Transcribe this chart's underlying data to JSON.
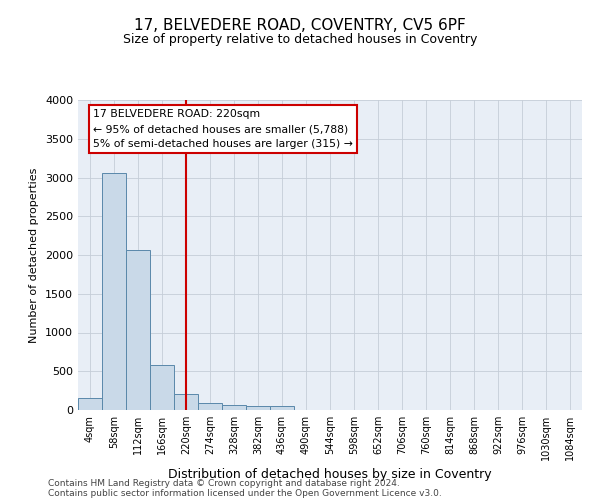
{
  "title1": "17, BELVEDERE ROAD, COVENTRY, CV5 6PF",
  "title2": "Size of property relative to detached houses in Coventry",
  "xlabel": "Distribution of detached houses by size in Coventry",
  "ylabel": "Number of detached properties",
  "footer1": "Contains HM Land Registry data © Crown copyright and database right 2024.",
  "footer2": "Contains public sector information licensed under the Open Government Licence v3.0.",
  "categories": [
    "4sqm",
    "58sqm",
    "112sqm",
    "166sqm",
    "220sqm",
    "274sqm",
    "328sqm",
    "382sqm",
    "436sqm",
    "490sqm",
    "544sqm",
    "598sqm",
    "652sqm",
    "706sqm",
    "760sqm",
    "814sqm",
    "868sqm",
    "922sqm",
    "976sqm",
    "1030sqm",
    "1084sqm"
  ],
  "values": [
    150,
    3060,
    2060,
    575,
    210,
    85,
    65,
    50,
    50,
    0,
    0,
    0,
    0,
    0,
    0,
    0,
    0,
    0,
    0,
    0,
    0
  ],
  "bar_color": "#c9d9e8",
  "bar_edge_color": "#5a88aa",
  "vline_x": 4,
  "vline_color": "#cc0000",
  "ylim": [
    0,
    4000
  ],
  "yticks": [
    0,
    500,
    1000,
    1500,
    2000,
    2500,
    3000,
    3500,
    4000
  ],
  "annotation_line1": "17 BELVEDERE ROAD: 220sqm",
  "annotation_line2": "← 95% of detached houses are smaller (5,788)",
  "annotation_line3": "5% of semi-detached houses are larger (315) →",
  "background_color": "#ffffff",
  "plot_bg_color": "#e8eef6",
  "grid_color": "#c5cdd8"
}
